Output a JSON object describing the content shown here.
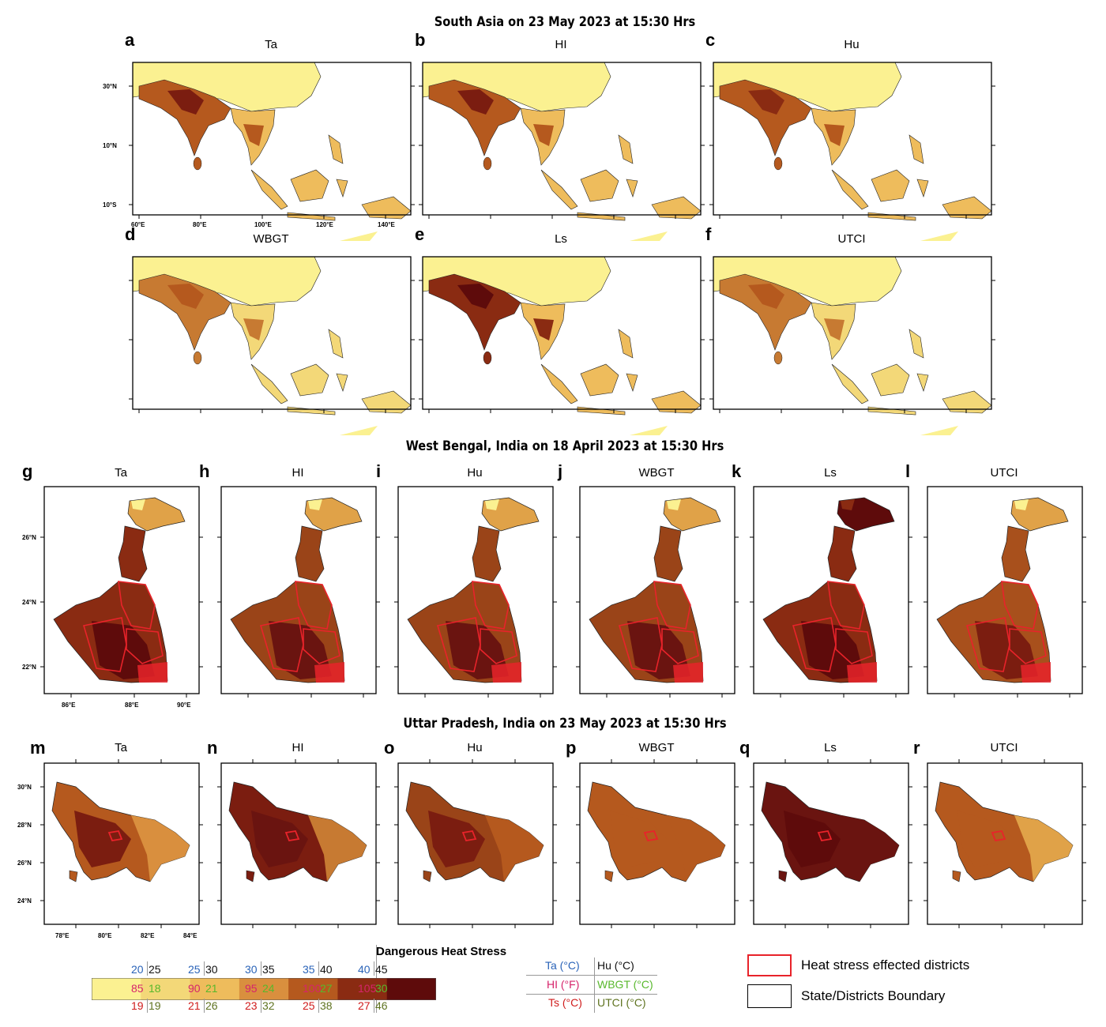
{
  "sections": [
    {
      "title": "South Asia on 23 May 2023 at 15:30 Hrs"
    },
    {
      "title": "West Bengal, India on 18 April 2023 at 15:30 Hrs"
    },
    {
      "title": "Uttar Pradesh, India on 23 May 2023 at 15:30 Hrs"
    }
  ],
  "south_asia": {
    "panels": [
      {
        "letter": "a",
        "name": "Ta"
      },
      {
        "letter": "b",
        "name": "HI"
      },
      {
        "letter": "c",
        "name": "Hu"
      },
      {
        "letter": "d",
        "name": "WBGT"
      },
      {
        "letter": "e",
        "name": "Ls"
      },
      {
        "letter": "f",
        "name": "UTCI"
      }
    ],
    "lat_ticks": [
      "30°N",
      "10°N",
      "10°S"
    ],
    "lon_ticks": [
      "60°E",
      "80°E",
      "100°E",
      "120°E",
      "140°E"
    ]
  },
  "west_bengal": {
    "panels": [
      {
        "letter": "g",
        "name": "Ta"
      },
      {
        "letter": "h",
        "name": "HI"
      },
      {
        "letter": "i",
        "name": "Hu"
      },
      {
        "letter": "j",
        "name": "WBGT"
      },
      {
        "letter": "k",
        "name": "Ls"
      },
      {
        "letter": "l",
        "name": "UTCI"
      }
    ],
    "lat_ticks": [
      "26°N",
      "24°N",
      "22°N"
    ],
    "lon_ticks": [
      "86°E",
      "88°E",
      "90°E"
    ]
  },
  "uttar_pradesh": {
    "panels": [
      {
        "letter": "m",
        "name": "Ta"
      },
      {
        "letter": "n",
        "name": "HI"
      },
      {
        "letter": "o",
        "name": "Hu"
      },
      {
        "letter": "p",
        "name": "WBGT"
      },
      {
        "letter": "q",
        "name": "Ls"
      },
      {
        "letter": "r",
        "name": "UTCI"
      }
    ],
    "lat_ticks": [
      "30°N",
      "28°N",
      "26°N",
      "24°N"
    ],
    "lon_ticks": [
      "78°E",
      "80°E",
      "82°E",
      "84°E"
    ]
  },
  "legend": {
    "dangerous_label": "Dangerous Heat Stress",
    "colors": [
      "#fbf191",
      "#f3d878",
      "#eebc5c",
      "#d98f3e",
      "#b5591e",
      "#8a2b12",
      "#5e0b0b"
    ],
    "top_row": [
      [
        "20",
        "25"
      ],
      [
        "25",
        "30"
      ],
      [
        "30",
        "35"
      ],
      [
        "35",
        "40"
      ],
      [
        "40",
        "45"
      ]
    ],
    "mid_row": [
      [
        "85",
        "18"
      ],
      [
        "90",
        "21"
      ],
      [
        "95",
        "24"
      ],
      [
        "100",
        "27"
      ],
      [
        "105",
        "30"
      ]
    ],
    "bot_row": [
      [
        "19",
        "19"
      ],
      [
        "21",
        "26"
      ],
      [
        "23",
        "32"
      ],
      [
        "25",
        "38"
      ],
      [
        "27",
        "46"
      ]
    ],
    "index_key": {
      "ta": "Ta (°C)",
      "hu": "Hu (°C)",
      "hi": "HI (°F)",
      "wbgt": "WBGT (°C)",
      "ts": "Ts (°C)",
      "utci": "UTCI (°C)"
    },
    "heat_stress_label": "Heat stress effected districts",
    "boundary_label": "State/Districts Boundary",
    "heat_stress_color": "#e8232a"
  }
}
